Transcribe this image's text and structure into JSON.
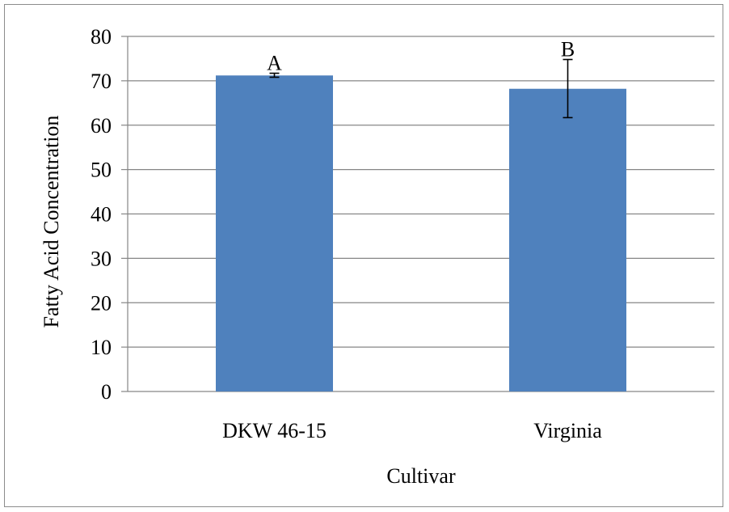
{
  "chart_data": {
    "type": "bar",
    "categories": [
      "DKW 46-15",
      "Virginia"
    ],
    "values": [
      71.2,
      68.2
    ],
    "error_low": [
      70.8,
      61.7
    ],
    "error_high": [
      71.7,
      74.8
    ],
    "annotations": [
      "A",
      "B"
    ],
    "xlabel": "Cultivar",
    "ylabel": "Fatty Acid Concentration",
    "ylim": [
      0,
      80
    ],
    "yticks": [
      0,
      10,
      20,
      30,
      40,
      50,
      60,
      70,
      80
    ],
    "grid": true,
    "legend": false,
    "bar_color": "#4f81bd",
    "grid_color": "#868686"
  }
}
